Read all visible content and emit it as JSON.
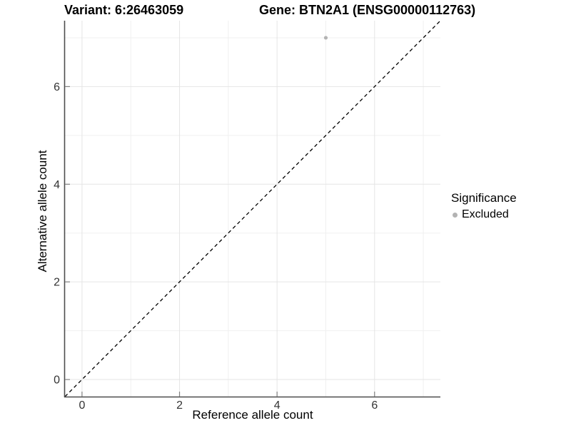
{
  "figure": {
    "title_left": "Variant: 6:26463059",
    "title_right": "Gene: BTN2A1 (ENSG00000112763)"
  },
  "chart_data": {
    "type": "scatter",
    "title": "Variant: 6:26463059   Gene: BTN2A1 (ENSG00000112763)",
    "xlabel": "Reference allele count",
    "ylabel": "Alternative allele count",
    "xlim": [
      -0.35,
      7.35
    ],
    "ylim": [
      -0.35,
      7.35
    ],
    "x_major_ticks": [
      0,
      2,
      4,
      6
    ],
    "y_major_ticks": [
      0,
      2,
      4,
      6
    ],
    "x_minor_gridlines": [
      1,
      3,
      5,
      7
    ],
    "y_minor_gridlines": [
      1,
      3,
      5,
      7
    ],
    "grid": "on",
    "series": [
      {
        "name": "Excluded",
        "color": "#b3b3b3",
        "marker": "circle",
        "points": [
          {
            "x": 5,
            "y": 7
          }
        ]
      }
    ],
    "reference_line": {
      "type": "identity",
      "slope": 1,
      "intercept": 0,
      "line_style": "dashed",
      "color": "#000000"
    },
    "legend": {
      "title": "Significance",
      "position": "right",
      "items": [
        {
          "label": "Excluded",
          "color": "#b3b3b3",
          "marker": "circle"
        }
      ]
    }
  },
  "colors": {
    "background": "#ffffff",
    "major_grid": "#e5e5e5",
    "minor_grid": "#f0f0f0",
    "axis_line": "#4d4d4d",
    "tick_mark": "#808080",
    "tick_label": "#333333",
    "point": "#b3b3b3"
  }
}
